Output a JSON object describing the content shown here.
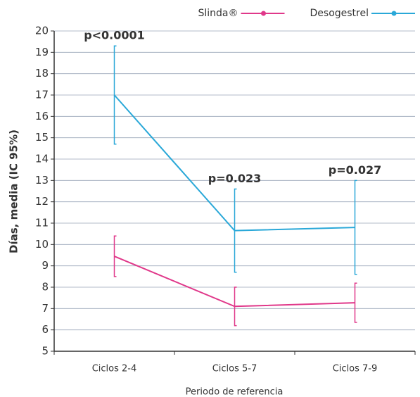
{
  "chart_data": {
    "type": "line",
    "x_label": "Periodo de referencia",
    "y_label": "Días, media (IC 95%)",
    "categories": [
      "Ciclos 2-4",
      "Ciclos 5-7",
      "Ciclos 7-9"
    ],
    "series": [
      {
        "name": "Slinda®",
        "color": "#e0388a",
        "values": [
          9.45,
          7.1,
          7.27
        ],
        "errors": [
          0.95,
          0.9,
          0.92
        ]
      },
      {
        "name": "Desogestrel",
        "color": "#2aa8d8",
        "values": [
          17.0,
          10.65,
          10.8
        ],
        "errors": [
          2.3,
          1.95,
          2.2
        ]
      }
    ],
    "annotations": [
      "p<0.0001",
      "p=0.023",
      "p=0.027"
    ],
    "ylim": [
      5,
      20
    ],
    "yticks": [
      5,
      6,
      7,
      8,
      9,
      10,
      11,
      12,
      13,
      14,
      15,
      16,
      17,
      18,
      19,
      20
    ],
    "grid": true,
    "legend": "top-right"
  }
}
